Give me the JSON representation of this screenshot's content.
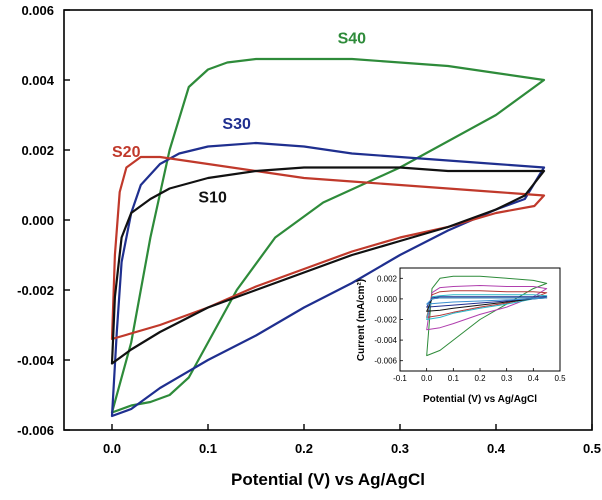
{
  "chart_data": [
    {
      "type": "line",
      "title": "",
      "xlabel": "Potential (V) vs Ag/AgCl",
      "ylabel": "",
      "xlim": [
        -0.05,
        0.5
      ],
      "ylim": [
        -0.006,
        0.006
      ],
      "xticks": [
        0.0,
        0.1,
        0.2,
        0.3,
        0.4,
        0.5
      ],
      "xtick_labels": [
        "0.0",
        "0.1",
        "0.2",
        "0.3",
        "0.4",
        "0.5"
      ],
      "yticks": [
        -0.006,
        -0.004,
        -0.002,
        0.0,
        0.002,
        0.004,
        0.006
      ],
      "ytick_labels": [
        "-0.006",
        "-0.004",
        "-0.002",
        "0.000",
        "0.002",
        "0.004",
        "0.006"
      ],
      "grid": false,
      "series": [
        {
          "name": "S40",
          "color": "#2e8b3a",
          "label_at": [
            0.235,
            0.00505
          ],
          "x": [
            0.0,
            0.02,
            0.04,
            0.06,
            0.08,
            0.1,
            0.13,
            0.17,
            0.22,
            0.3,
            0.4,
            0.45,
            0.4,
            0.35,
            0.3,
            0.25,
            0.2,
            0.15,
            0.12,
            0.1,
            0.08,
            0.06,
            0.04,
            0.02,
            0.0
          ],
          "y": [
            -0.0055,
            -0.0053,
            -0.0052,
            -0.005,
            -0.0045,
            -0.0035,
            -0.002,
            -0.0005,
            0.0005,
            0.0015,
            0.003,
            0.004,
            0.0042,
            0.0044,
            0.0045,
            0.0046,
            0.0046,
            0.0046,
            0.0045,
            0.0043,
            0.0038,
            0.002,
            -0.0005,
            -0.0035,
            -0.0055
          ]
        },
        {
          "name": "S30",
          "color": "#1f2f8f",
          "label_at": [
            0.115,
            0.0026
          ],
          "x": [
            0.0,
            0.02,
            0.05,
            0.1,
            0.15,
            0.2,
            0.25,
            0.3,
            0.35,
            0.4,
            0.43,
            0.45,
            0.4,
            0.35,
            0.3,
            0.25,
            0.2,
            0.15,
            0.1,
            0.07,
            0.05,
            0.03,
            0.02,
            0.01,
            0.005,
            0.0
          ],
          "y": [
            -0.0056,
            -0.0054,
            -0.0048,
            -0.004,
            -0.0033,
            -0.0025,
            -0.0018,
            -0.001,
            -0.0003,
            0.0003,
            0.0006,
            0.0015,
            0.0016,
            0.0017,
            0.0018,
            0.0019,
            0.0021,
            0.0022,
            0.0021,
            0.0019,
            0.0016,
            0.001,
            0.0002,
            -0.0012,
            -0.0032,
            -0.0056
          ]
        },
        {
          "name": "S20",
          "color": "#c0392b",
          "label_at": [
            0.0,
            0.0018
          ],
          "x": [
            0.0,
            0.05,
            0.1,
            0.15,
            0.2,
            0.25,
            0.3,
            0.35,
            0.4,
            0.44,
            0.45,
            0.4,
            0.35,
            0.3,
            0.25,
            0.2,
            0.15,
            0.1,
            0.05,
            0.03,
            0.015,
            0.008,
            0.003,
            0.0
          ],
          "y": [
            -0.0034,
            -0.003,
            -0.0025,
            -0.0019,
            -0.0014,
            -0.0009,
            -0.0005,
            -0.0002,
            0.0002,
            0.0004,
            0.0007,
            0.0008,
            0.0009,
            0.001,
            0.0011,
            0.0012,
            0.0014,
            0.0016,
            0.0018,
            0.0018,
            0.0015,
            0.0008,
            -0.001,
            -0.0034
          ]
        },
        {
          "name": "S10",
          "color": "#111111",
          "label_at": [
            0.09,
            0.0005
          ],
          "x": [
            0.0,
            0.02,
            0.05,
            0.1,
            0.15,
            0.2,
            0.25,
            0.3,
            0.35,
            0.4,
            0.43,
            0.45,
            0.4,
            0.35,
            0.3,
            0.25,
            0.2,
            0.15,
            0.1,
            0.06,
            0.04,
            0.02,
            0.01,
            0.003,
            0.0
          ],
          "y": [
            -0.0041,
            -0.0037,
            -0.0032,
            -0.0025,
            -0.002,
            -0.0015,
            -0.001,
            -0.0006,
            -0.0002,
            0.0003,
            0.0007,
            0.0014,
            0.0014,
            0.0014,
            0.0015,
            0.0015,
            0.0015,
            0.0014,
            0.0012,
            0.0009,
            0.0006,
            0.0002,
            -0.0005,
            -0.0022,
            -0.0041
          ]
        }
      ]
    },
    {
      "type": "line",
      "title": "",
      "xlabel": "Potential (V) vs Ag/AgCl",
      "ylabel": "Current (mA/cm²)",
      "xlim": [
        -0.1,
        0.5
      ],
      "ylim": [
        -0.007,
        0.003
      ],
      "xticks": [
        -0.1,
        0.0,
        0.1,
        0.2,
        0.3,
        0.4,
        0.5
      ],
      "xtick_labels": [
        "-0.1",
        "0.0",
        "0.1",
        "0.2",
        "0.3",
        "0.4",
        "0.5"
      ],
      "yticks": [
        0.002,
        0.0,
        -0.002,
        -0.004,
        -0.006
      ],
      "ytick_labels": [
        "0.002",
        "0.000",
        "-0.002",
        "-0.004",
        "-0.006"
      ],
      "grid": false,
      "series": [
        {
          "color": "#2e8b3a",
          "x": [
            0.0,
            0.05,
            0.1,
            0.2,
            0.3,
            0.4,
            0.45,
            0.4,
            0.3,
            0.2,
            0.1,
            0.05,
            0.02,
            0.0
          ],
          "y": [
            -0.0055,
            -0.005,
            -0.004,
            -0.002,
            -0.0005,
            0.001,
            0.0015,
            0.0018,
            0.002,
            0.0022,
            0.0022,
            0.002,
            0.001,
            -0.0055
          ]
        },
        {
          "color": "#b03fae",
          "x": [
            0.0,
            0.05,
            0.1,
            0.2,
            0.3,
            0.4,
            0.45,
            0.4,
            0.3,
            0.2,
            0.1,
            0.05,
            0.02,
            0.0
          ],
          "y": [
            -0.003,
            -0.0028,
            -0.0024,
            -0.0015,
            -0.0008,
            0.0002,
            0.001,
            0.0012,
            0.0012,
            0.0013,
            0.0012,
            0.0011,
            0.0006,
            -0.003
          ]
        },
        {
          "color": "#b23a3a",
          "x": [
            0.0,
            0.05,
            0.1,
            0.2,
            0.3,
            0.4,
            0.45,
            0.4,
            0.3,
            0.2,
            0.1,
            0.05,
            0.02,
            0.0
          ],
          "y": [
            -0.0018,
            -0.0016,
            -0.0013,
            -0.0008,
            -0.0004,
            0.0001,
            0.0006,
            0.0007,
            0.0007,
            0.0008,
            0.0008,
            0.0007,
            0.0004,
            -0.0018
          ]
        },
        {
          "color": "#2bb7c9",
          "x": [
            0.0,
            0.05,
            0.1,
            0.2,
            0.3,
            0.4,
            0.45,
            0.4,
            0.3,
            0.2,
            0.1,
            0.05,
            0.02,
            0.0
          ],
          "y": [
            -0.002,
            -0.0018,
            -0.0014,
            -0.0009,
            -0.0005,
            0.0,
            0.0003,
            0.0004,
            0.0004,
            0.0004,
            0.0004,
            0.0003,
            0.0002,
            -0.002
          ]
        },
        {
          "color": "#1f2f8f",
          "x": [
            0.0,
            0.05,
            0.1,
            0.2,
            0.3,
            0.4,
            0.45,
            0.4,
            0.3,
            0.2,
            0.1,
            0.05,
            0.02,
            0.0
          ],
          "y": [
            -0.0008,
            -0.0007,
            -0.0006,
            -0.0004,
            -0.0002,
            0.0,
            0.0002,
            0.0002,
            0.0002,
            0.0002,
            0.0002,
            0.0002,
            0.0001,
            -0.0008
          ]
        },
        {
          "color": "#111111",
          "x": [
            0.0,
            0.05,
            0.1,
            0.2,
            0.3,
            0.4,
            0.45,
            0.4,
            0.3,
            0.2,
            0.1,
            0.05,
            0.02,
            0.0
          ],
          "y": [
            -0.0012,
            -0.0011,
            -0.0009,
            -0.0006,
            -0.0003,
            0.0,
            0.0001,
            0.0001,
            0.0001,
            0.0001,
            0.0001,
            0.0001,
            0.0,
            -0.0012
          ]
        },
        {
          "color": "#3a8fd0",
          "x": [
            0.0,
            0.05,
            0.1,
            0.2,
            0.3,
            0.4,
            0.45,
            0.4,
            0.3,
            0.2,
            0.1,
            0.05,
            0.02,
            0.0
          ],
          "y": [
            -0.0005,
            -0.0004,
            -0.0003,
            -0.0002,
            -0.0001,
            0.0,
            0.0001,
            0.0001,
            0.0001,
            0.0001,
            0.0001,
            0.0001,
            0.0,
            -0.0005
          ]
        }
      ]
    }
  ]
}
